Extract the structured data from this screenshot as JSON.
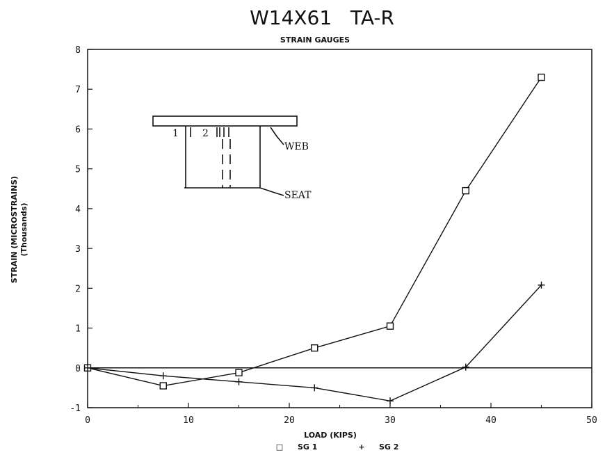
{
  "chart_data": {
    "type": "line",
    "title": "W14X61   TA-R",
    "subtitle": "STRAIN GAUGES",
    "xlabel": "LOAD (KIPS)",
    "ylabel": "STRAIN (MICROSTRAINS)",
    "ylabel2": "(Thousands)",
    "xlim": [
      0,
      50
    ],
    "ylim": [
      -1,
      8
    ],
    "xticks": [
      "0",
      "10",
      "20",
      "30",
      "40",
      "50"
    ],
    "yticks": [
      "-1",
      "0",
      "1",
      "2",
      "3",
      "4",
      "5",
      "6",
      "7",
      "8"
    ],
    "grid": false,
    "zero_line": true,
    "legend_position": "bottom",
    "series": [
      {
        "name": "SG 1",
        "marker": "square",
        "marker_symbol": "□",
        "x": [
          0,
          7.5,
          15,
          22.5,
          30,
          37.5,
          45
        ],
        "values": [
          0,
          -0.45,
          -0.12,
          0.5,
          1.05,
          4.45,
          7.3
        ]
      },
      {
        "name": "SG 2",
        "marker": "plus",
        "marker_symbol": "+",
        "x": [
          0,
          7.5,
          15,
          22.5,
          30,
          37.5,
          45
        ],
        "values": [
          0,
          -0.2,
          -0.35,
          -0.5,
          -0.83,
          0.02,
          2.08
        ]
      }
    ],
    "inset": {
      "gauge_labels": [
        "1",
        "2"
      ],
      "web_label": "WEB",
      "seat_label": "SEAT"
    }
  }
}
